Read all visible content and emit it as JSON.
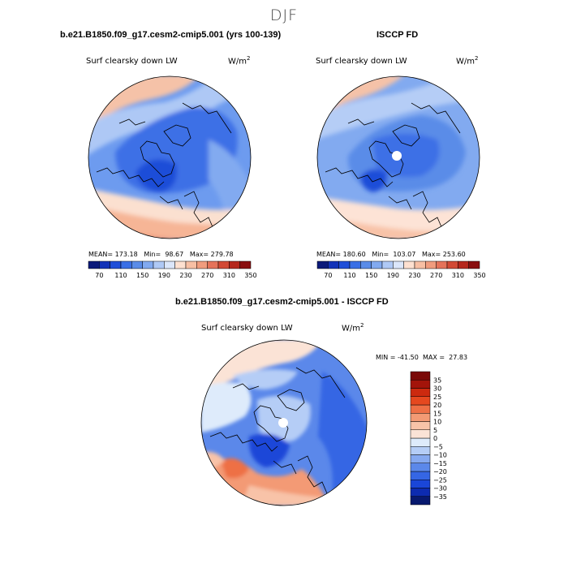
{
  "figure": {
    "title": "DJF"
  },
  "panels": [
    {
      "id": "model",
      "title": "b.e21.B1850.f09_g17.cesm2-cmip5.001 (yrs 100-139)",
      "variable": "Surf clearsky down LW",
      "units": "W/m",
      "units_exp": "2",
      "stats": {
        "mean_label": "MEAN=",
        "mean": "173.18",
        "min_label": "Min=",
        "min": "98.67",
        "max_label": "Max=",
        "max": "279.78"
      }
    },
    {
      "id": "obs",
      "title": "ISCCP FD",
      "variable": "Surf clearsky down LW",
      "units": "W/m",
      "units_exp": "2",
      "stats": {
        "mean_label": "MEAN=",
        "mean": "180.60",
        "min_label": "Min=",
        "min": "103.07",
        "max_label": "Max=",
        "max": "253.60"
      }
    },
    {
      "id": "diff",
      "title": "b.e21.B1850.f09_g17.cesm2-cmip5.001 - ISCCP FD",
      "variable": "Surf clearsky down LW",
      "units": "W/m",
      "units_exp": "2",
      "stats": {
        "min_label": "MIN =",
        "min": "-41.50",
        "max_label": "MAX =",
        "max": "27.83"
      }
    }
  ],
  "colorbars": {
    "absolute": {
      "colors": [
        "#0b1a7a",
        "#1232b8",
        "#1f4ed8",
        "#3a6fe6",
        "#5a8ce8",
        "#82aaf0",
        "#afc9f5",
        "#dbe6fa",
        "#fde0d0",
        "#f7bfa4",
        "#f09c7e",
        "#e5735a",
        "#d24a36",
        "#b5281d",
        "#8a0f10"
      ],
      "tick_labels": [
        "70",
        "110",
        "150",
        "190",
        "230",
        "270",
        "310",
        "350"
      ],
      "range": [
        50,
        370
      ]
    },
    "difference": {
      "colors": [
        "#08196f",
        "#0d2bb0",
        "#1a46d8",
        "#3566e4",
        "#5b88ea",
        "#86a9f0",
        "#b5cdf6",
        "#deebfb",
        "#fbe3d6",
        "#f8c3a8",
        "#f39a74",
        "#ee6f45",
        "#e5481f",
        "#cc2a0f",
        "#a3140a",
        "#7a0a08"
      ],
      "tick_labels": [
        "35",
        "30",
        "25",
        "20",
        "15",
        "10",
        "5",
        "0",
        "−5",
        "−10",
        "−15",
        "−20",
        "−25",
        "−30",
        "−35"
      ]
    }
  },
  "chart_data": [
    {
      "type": "heatmap",
      "title": "b.e21.B1850.f09_g17.cesm2-cmip5.001 (yrs 100-139)",
      "subtitle": "Surf clearsky down LW",
      "units": "W/m2",
      "projection": "polar stereographic (North Pole)",
      "levels": [
        70,
        90,
        110,
        130,
        150,
        170,
        190,
        210,
        230,
        250,
        270,
        290,
        310,
        330,
        350
      ],
      "mean": 173.18,
      "min": 98.67,
      "max": 279.78
    },
    {
      "type": "heatmap",
      "title": "ISCCP FD",
      "subtitle": "Surf clearsky down LW",
      "units": "W/m2",
      "projection": "polar stereographic (North Pole)",
      "levels": [
        70,
        90,
        110,
        130,
        150,
        170,
        190,
        210,
        230,
        250,
        270,
        290,
        310,
        330,
        350
      ],
      "mean": 180.6,
      "min": 103.07,
      "max": 253.6
    },
    {
      "type": "heatmap",
      "title": "b.e21.B1850.f09_g17.cesm2-cmip5.001 - ISCCP FD",
      "subtitle": "Surf clearsky down LW",
      "units": "W/m2",
      "projection": "polar stereographic (North Pole)",
      "levels": [
        -35,
        -30,
        -25,
        -20,
        -15,
        -10,
        -5,
        0,
        5,
        10,
        15,
        20,
        25,
        30,
        35
      ],
      "min": -41.5,
      "max": 27.83
    }
  ]
}
